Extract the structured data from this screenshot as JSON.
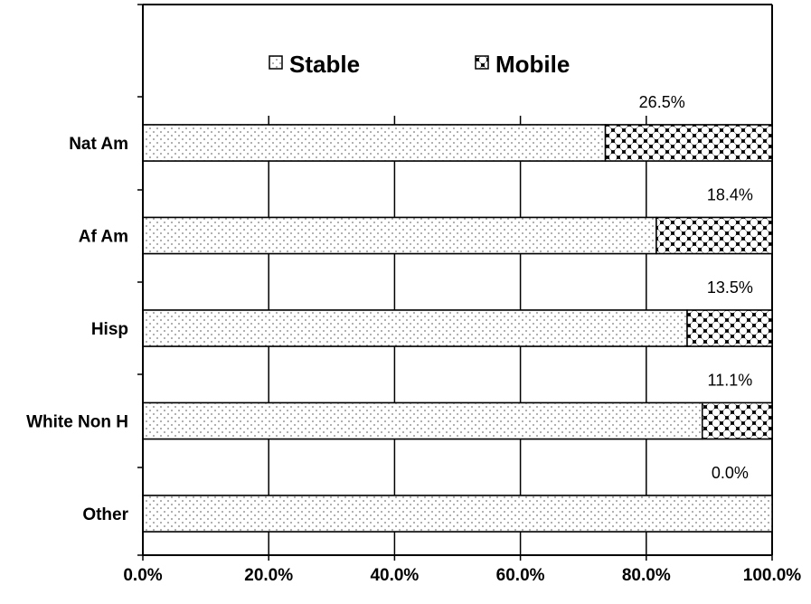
{
  "chart_data": {
    "type": "bar",
    "orientation": "horizontal",
    "stacked": true,
    "categories": [
      "Nat Am",
      "Af Am",
      "Hisp",
      "White Non H",
      "Other"
    ],
    "series": [
      {
        "name": "Stable",
        "values": [
          73.5,
          81.6,
          86.5,
          88.9,
          100.0
        ],
        "pattern": "dots"
      },
      {
        "name": "Mobile",
        "values": [
          26.5,
          18.4,
          13.5,
          11.1,
          0.0
        ],
        "pattern": "checker"
      }
    ],
    "data_labels": [
      "26.5%",
      "18.4%",
      "13.5%",
      "11.1%",
      "0.0%"
    ],
    "x_ticks": [
      "0.0%",
      "20.0%",
      "40.0%",
      "60.0%",
      "80.0%",
      "100.0%"
    ],
    "xlim": [
      0,
      100
    ],
    "grid": "vertical",
    "legend_position": "top",
    "colors": {
      "stable_fill": "#ffffff",
      "stable_dot": "#7a7a7a",
      "mobile_fill": "#000000",
      "outline": "#000000"
    }
  }
}
